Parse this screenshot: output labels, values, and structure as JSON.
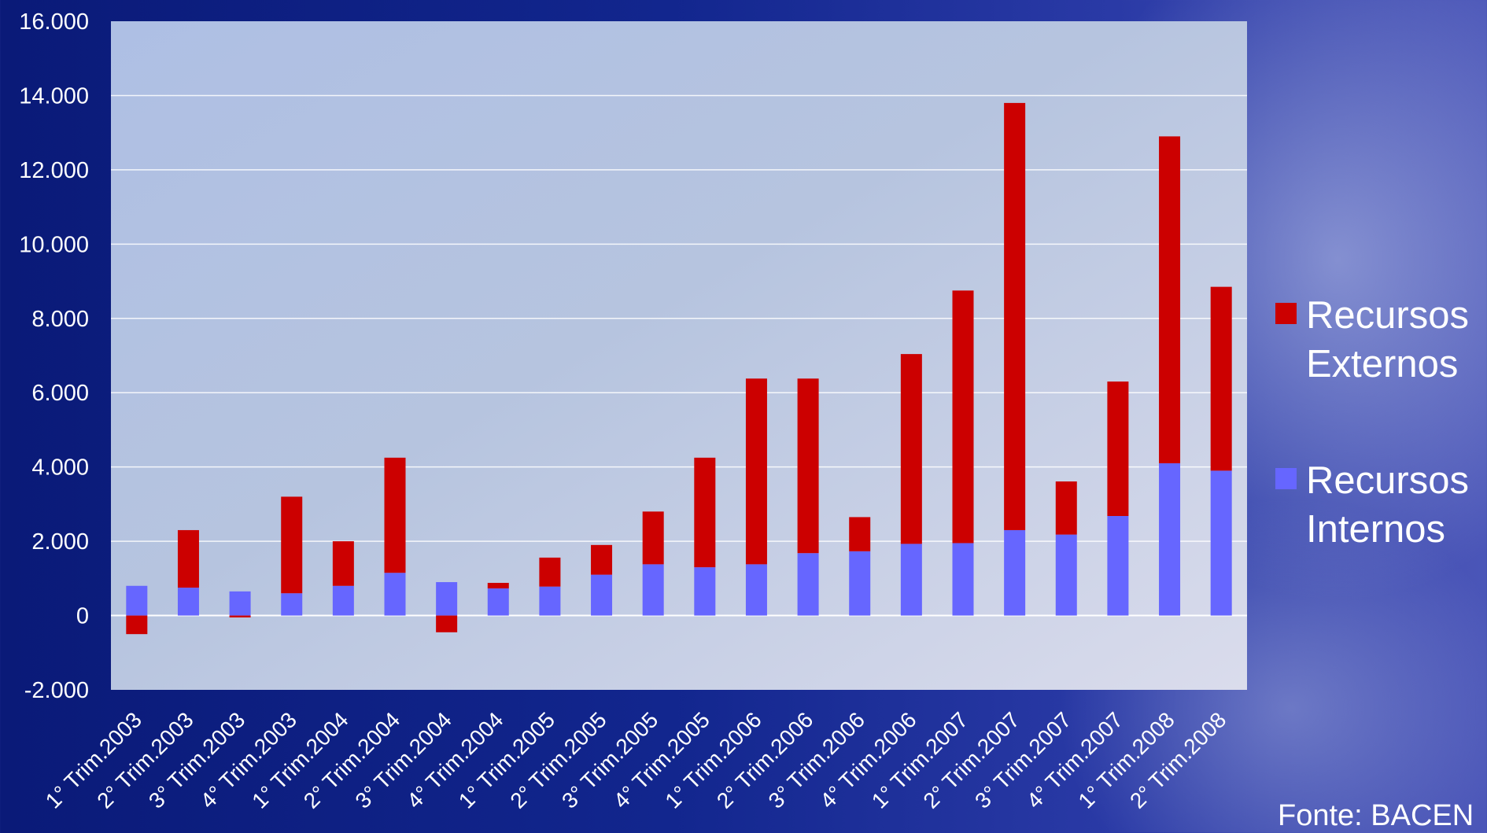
{
  "chart_data": {
    "type": "bar",
    "stacked": true,
    "title": "",
    "xlabel": "",
    "ylabel": "",
    "ylim": [
      -2000,
      16000
    ],
    "yticks": [
      16000,
      14000,
      12000,
      10000,
      8000,
      6000,
      4000,
      2000,
      0,
      -2000
    ],
    "ytick_labels": [
      "16.000",
      "14.000",
      "12.000",
      "10.000",
      "8.000",
      "6.000",
      "4.000",
      "2.000",
      "0",
      "-2.000"
    ],
    "grid": true,
    "legend_position": "right",
    "categories": [
      "1° Trim.2003",
      "2° Trim.2003",
      "3° Trim.2003",
      "4° Trim.2003",
      "1° Trim.2004",
      "2° Trim.2004",
      "3° Trim.2004",
      "4° Trim.2004",
      "1° Trim.2005",
      "2° Trim.2005",
      "3° Trim.2005",
      "4° Trim.2005",
      "1° Trim.2006",
      "2° Trim.2006",
      "3° Trim.2006",
      "4° Trim.2006",
      "1° Trim.2007",
      "2° Trim.2007",
      "3° Trim.2007",
      "4° Trim.2007",
      "1° Trim.2008",
      "2° Trim.2008"
    ],
    "series": [
      {
        "name": "Recursos Internos",
        "name_lines": [
          "Recursos",
          "Internos"
        ],
        "color": "#6666ff",
        "values": [
          800,
          750,
          650,
          600,
          800,
          1150,
          900,
          730,
          780,
          1100,
          1380,
          1300,
          1380,
          1680,
          1730,
          1930,
          1950,
          2300,
          2180,
          2680,
          4100,
          3900
        ]
      },
      {
        "name": "Recursos Externos",
        "name_lines": [
          "Recursos",
          "Externos"
        ],
        "color": "#cc0000",
        "values": [
          -500,
          1550,
          -50,
          2600,
          1200,
          3100,
          -450,
          150,
          780,
          800,
          1420,
          2950,
          5000,
          4700,
          920,
          5110,
          6800,
          11500,
          1430,
          3620,
          8800,
          4950
        ]
      }
    ]
  },
  "source": "Fonte:  BACEN"
}
